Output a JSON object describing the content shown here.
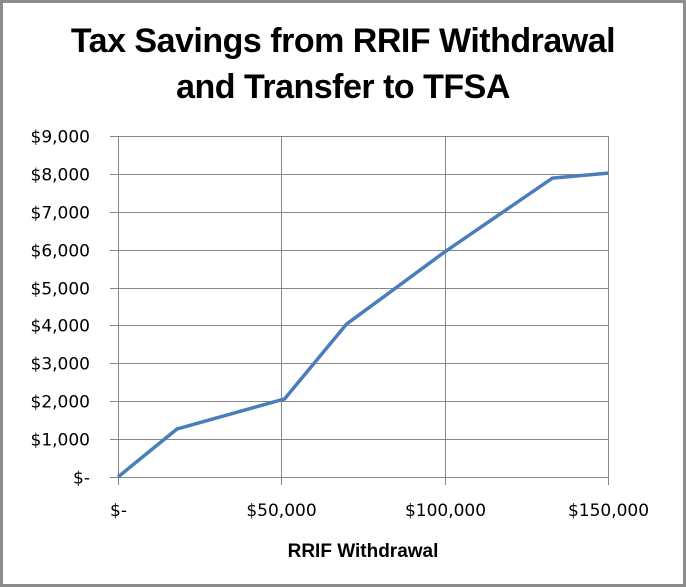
{
  "chart_data": {
    "type": "line",
    "title": "Tax Savings from RRIF Withdrawal and Transfer to TFSA",
    "title_lines": [
      "Tax Savings from RRIF Withdrawal",
      "and Transfer to TFSA"
    ],
    "xlabel": "RRIF Withdrawal",
    "ylabel": "",
    "xlim": [
      0,
      150000
    ],
    "ylim": [
      0,
      9000
    ],
    "x_ticks": [
      0,
      50000,
      100000,
      150000
    ],
    "x_tick_labels": [
      "$-",
      "$50,000",
      "$100,000",
      "$150,000"
    ],
    "y_ticks": [
      0,
      1000,
      2000,
      3000,
      4000,
      5000,
      6000,
      7000,
      8000,
      9000
    ],
    "y_tick_labels": [
      "$-",
      "$1,000",
      "$2,000",
      "$3,000",
      "$4,000",
      "$5,000",
      "$6,000",
      "$7,000",
      "$8,000",
      "$9,000"
    ],
    "grid": true,
    "legend": "none",
    "series": [
      {
        "name": "Tax Savings",
        "color": "#4a7ebb",
        "x": [
          0,
          18000,
          51000,
          70000,
          80000,
          100000,
          133000,
          150000
        ],
        "values": [
          0,
          1265,
          2060,
          4040,
          4670,
          5940,
          7890,
          8020
        ]
      }
    ]
  },
  "colors": {
    "line": "#4a7ebb",
    "grid": "#868686",
    "border": "#8c8c8c"
  }
}
